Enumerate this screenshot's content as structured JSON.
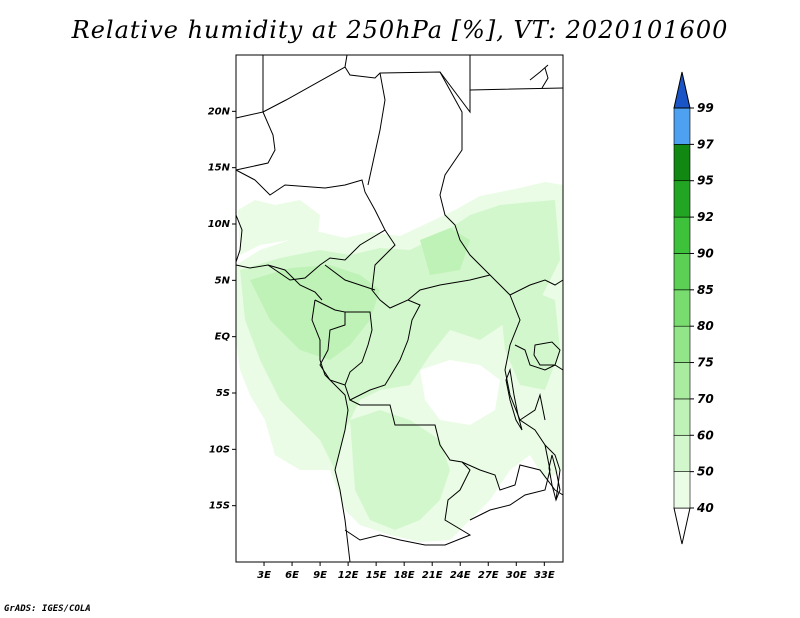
{
  "title": "Relative humidity at 250hPa [%], VT: 2020101600",
  "credit": "GrADS: IGES/COLA",
  "map": {
    "lat_labels": [
      "20N",
      "15N",
      "10N",
      "5N",
      "EQ",
      "5S",
      "10S",
      "15S"
    ],
    "lat_values": [
      20,
      15,
      10,
      5,
      0,
      -5,
      -10,
      -15
    ],
    "lon_labels": [
      "3E",
      "6E",
      "9E",
      "12E",
      "15E",
      "18E",
      "21E",
      "24E",
      "27E",
      "30E",
      "33E"
    ],
    "lon_values": [
      3,
      6,
      9,
      12,
      15,
      18,
      21,
      24,
      27,
      30,
      33
    ],
    "lon_range": [
      0,
      35
    ],
    "lat_range": [
      -20,
      25
    ]
  },
  "colorbar": {
    "levels": [
      "40",
      "50",
      "60",
      "70",
      "75",
      "80",
      "85",
      "90",
      "92",
      "95",
      "97",
      "99"
    ],
    "colors": [
      "#eafce6",
      "#d3f7cc",
      "#bff2b6",
      "#a9ec9f",
      "#92e588",
      "#78dc6e",
      "#5bd055",
      "#3ec23b",
      "#22a522",
      "#118811",
      "#4ea0f0",
      "#2a78e0",
      "#1a55c8"
    ]
  },
  "fill_colors": {
    "light": "#eafce6",
    "mid": "#d3f7cc",
    "dark": "#bff2b6"
  }
}
